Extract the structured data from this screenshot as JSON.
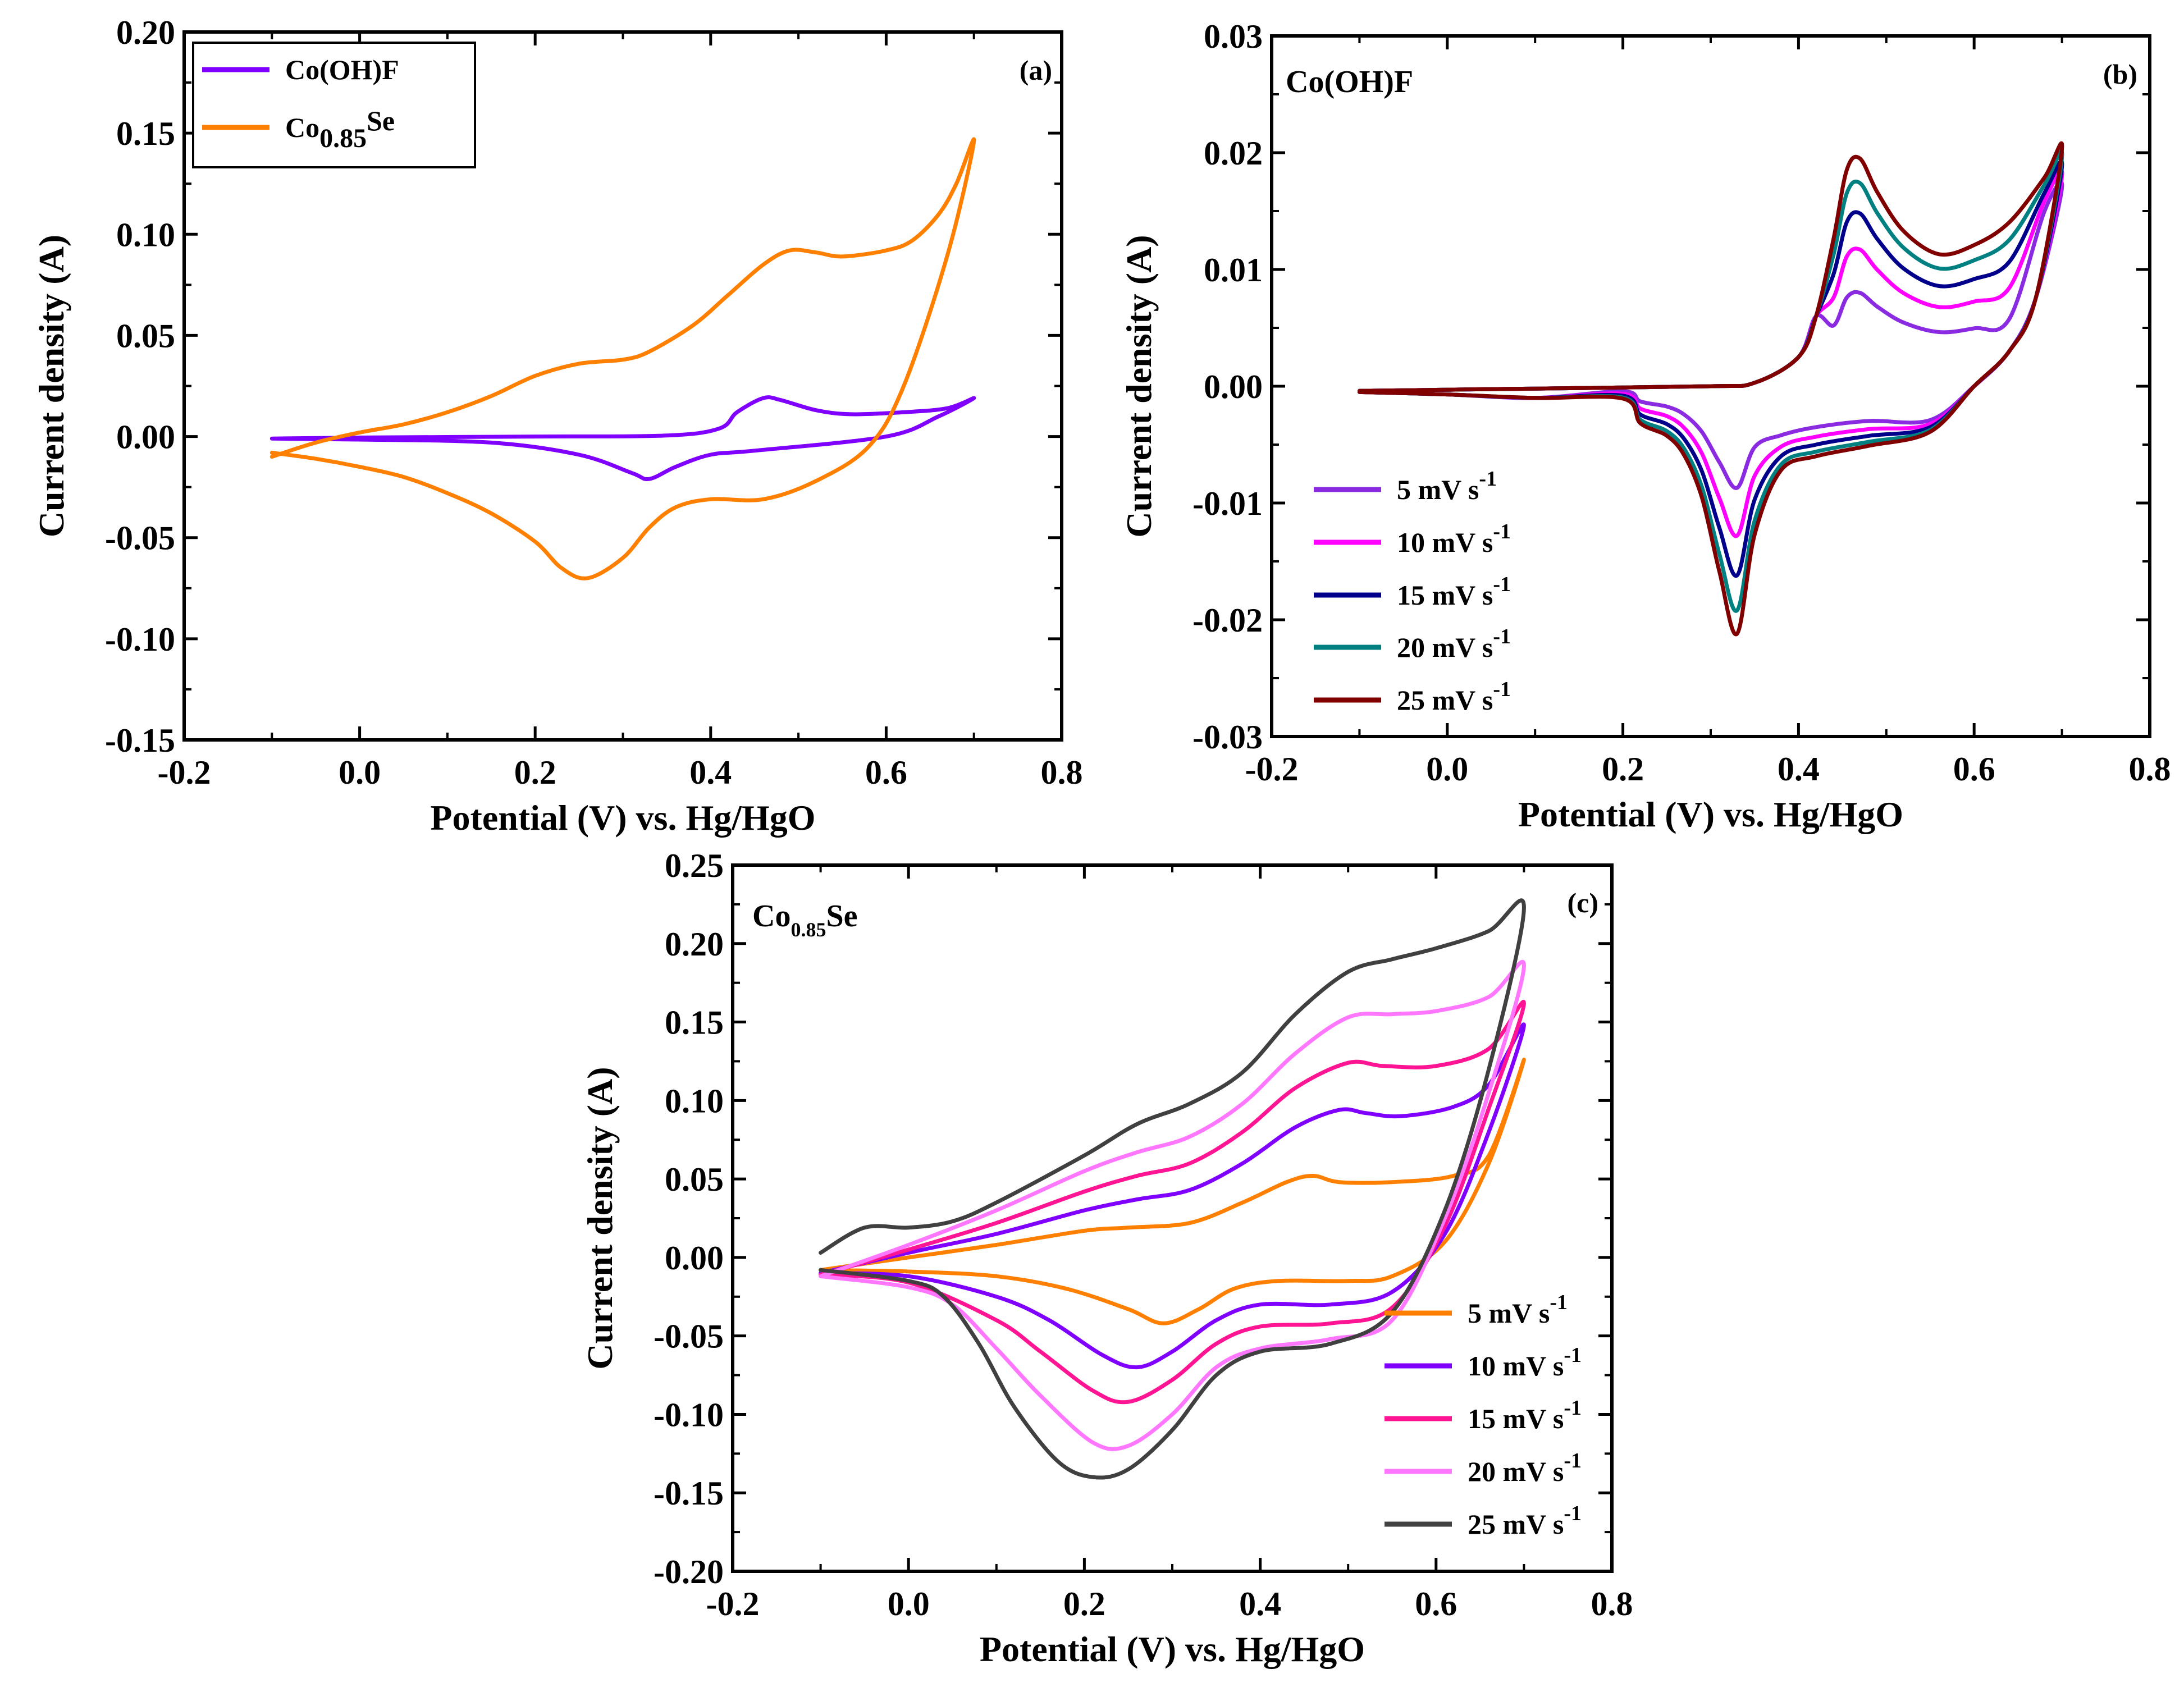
{
  "chart_data": [
    {
      "panel": "a",
      "panel_label": "(a)",
      "type": "line",
      "xlabel": "Potential (V) vs. Hg/HgO",
      "ylabel": "Current density (A)",
      "xlim": [
        -0.2,
        0.8
      ],
      "ylim": [
        -0.15,
        0.2
      ],
      "x_ticks": [
        -0.2,
        0.0,
        0.2,
        0.4,
        0.6,
        0.8
      ],
      "x_tick_labels": [
        "-0.2",
        "0.0",
        "0.2",
        "0.4",
        "0.6",
        "0.8"
      ],
      "y_ticks": [
        -0.15,
        -0.1,
        -0.05,
        0.0,
        0.05,
        0.1,
        0.15,
        0.2
      ],
      "y_tick_labels": [
        "-0.15",
        "-0.10",
        "-0.05",
        "0.00",
        "0.05",
        "0.10",
        "0.15",
        "0.20"
      ],
      "legend_position": "top-left",
      "series": [
        {
          "name": "Co(OH)F",
          "legend_main": "Co(OH)F",
          "legend_sub": "",
          "legend_after": "",
          "color": "#8000ff",
          "anodic": [
            [
              -0.1,
              -0.001
            ],
            [
              0.0,
              -0.0005
            ],
            [
              0.2,
              0.0
            ],
            [
              0.35,
              0.0005
            ],
            [
              0.41,
              0.004
            ],
            [
              0.43,
              0.012
            ],
            [
              0.46,
              0.019
            ],
            [
              0.48,
              0.018
            ],
            [
              0.52,
              0.013
            ],
            [
              0.56,
              0.011
            ],
            [
              0.62,
              0.012
            ],
            [
              0.67,
              0.014
            ],
            [
              0.7,
              0.019
            ]
          ],
          "cathodic": [
            [
              0.7,
              0.019
            ],
            [
              0.66,
              0.01
            ],
            [
              0.6,
              0.0
            ],
            [
              0.45,
              -0.007
            ],
            [
              0.4,
              -0.009
            ],
            [
              0.36,
              -0.015
            ],
            [
              0.33,
              -0.021
            ],
            [
              0.31,
              -0.018
            ],
            [
              0.25,
              -0.009
            ],
            [
              0.15,
              -0.003
            ],
            [
              0.0,
              -0.0015
            ],
            [
              -0.1,
              -0.001
            ]
          ]
        },
        {
          "name": "Co0.85Se",
          "legend_main": "Co",
          "legend_sub": "0.85",
          "legend_after": "Se",
          "color": "#ff8000",
          "anodic": [
            [
              -0.1,
              -0.01
            ],
            [
              -0.05,
              -0.003
            ],
            [
              0.0,
              0.002
            ],
            [
              0.05,
              0.006
            ],
            [
              0.1,
              0.012
            ],
            [
              0.15,
              0.02
            ],
            [
              0.2,
              0.03
            ],
            [
              0.25,
              0.036
            ],
            [
              0.3,
              0.038
            ],
            [
              0.33,
              0.042
            ],
            [
              0.38,
              0.055
            ],
            [
              0.42,
              0.07
            ],
            [
              0.46,
              0.085
            ],
            [
              0.49,
              0.092
            ],
            [
              0.52,
              0.091
            ],
            [
              0.55,
              0.089
            ],
            [
              0.6,
              0.092
            ],
            [
              0.63,
              0.097
            ],
            [
              0.66,
              0.11
            ],
            [
              0.68,
              0.125
            ],
            [
              0.7,
              0.146
            ]
          ],
          "cathodic": [
            [
              0.7,
              0.146
            ],
            [
              0.67,
              0.09
            ],
            [
              0.62,
              0.025
            ],
            [
              0.58,
              -0.005
            ],
            [
              0.52,
              -0.022
            ],
            [
              0.46,
              -0.031
            ],
            [
              0.4,
              -0.031
            ],
            [
              0.36,
              -0.035
            ],
            [
              0.33,
              -0.045
            ],
            [
              0.3,
              -0.06
            ],
            [
              0.26,
              -0.07
            ],
            [
              0.23,
              -0.065
            ],
            [
              0.2,
              -0.052
            ],
            [
              0.15,
              -0.038
            ],
            [
              0.1,
              -0.028
            ],
            [
              0.05,
              -0.02
            ],
            [
              0.0,
              -0.015
            ],
            [
              -0.05,
              -0.011
            ],
            [
              -0.1,
              -0.008
            ]
          ]
        }
      ]
    },
    {
      "panel": "b",
      "panel_label": "(b)",
      "sample_label_main": "Co(OH)F",
      "sample_label_sub": "",
      "sample_label_after": "",
      "type": "line",
      "xlabel": "Potential (V) vs. Hg/HgO",
      "ylabel": "Current density (A)",
      "xlim": [
        -0.2,
        0.8
      ],
      "ylim": [
        -0.03,
        0.03
      ],
      "x_ticks": [
        -0.2,
        0.0,
        0.2,
        0.4,
        0.6,
        0.8
      ],
      "x_tick_labels": [
        "-0.2",
        "0.0",
        "0.2",
        "0.4",
        "0.6",
        "0.8"
      ],
      "y_ticks": [
        -0.03,
        -0.02,
        -0.01,
        0.0,
        0.01,
        0.02,
        0.03
      ],
      "y_tick_labels": [
        "-0.03",
        "-0.02",
        "-0.01",
        "0.00",
        "0.01",
        "0.02",
        "0.03"
      ],
      "legend_position": "bottom-left",
      "series": [
        {
          "name": "5 mV s-1",
          "legend_main": "5 mV s",
          "legend_sup": "-1",
          "color": "#8a2be2",
          "peak_anodic": 0.008,
          "peak_cathodic": -0.0087,
          "end": 0.017
        },
        {
          "name": "10 mV s-1",
          "legend_main": "10 mV s",
          "legend_sup": "-1",
          "color": "#ff00ff",
          "peak_anodic": 0.0117,
          "peak_cathodic": -0.0128,
          "end": 0.018
        },
        {
          "name": "15 mV s-1",
          "legend_main": "15 mV s",
          "legend_sup": "-1",
          "color": "#00008b",
          "peak_anodic": 0.0148,
          "peak_cathodic": -0.0162,
          "end": 0.0188
        },
        {
          "name": "20 mV s-1",
          "legend_main": "20 mV s",
          "legend_sup": "-1",
          "color": "#008080",
          "peak_anodic": 0.0174,
          "peak_cathodic": -0.0192,
          "end": 0.0196
        },
        {
          "name": "25 mV s-1",
          "legend_main": "25 mV s",
          "legend_sup": "-1",
          "color": "#800000",
          "peak_anodic": 0.0195,
          "peak_cathodic": -0.0212,
          "end": 0.0203
        }
      ]
    },
    {
      "panel": "c",
      "panel_label": "(c)",
      "sample_label_main": "Co",
      "sample_label_sub": "0.85",
      "sample_label_after": "Se",
      "type": "line",
      "xlabel": "Potential (V) vs. Hg/HgO",
      "ylabel": "Current density (A)",
      "xlim": [
        -0.2,
        0.8
      ],
      "ylim": [
        -0.2,
        0.25
      ],
      "x_ticks": [
        -0.2,
        0.0,
        0.2,
        0.4,
        0.6,
        0.8
      ],
      "x_tick_labels": [
        "-0.2",
        "0.0",
        "0.2",
        "0.4",
        "0.6",
        "0.8"
      ],
      "y_ticks": [
        -0.2,
        -0.15,
        -0.1,
        -0.05,
        0.0,
        0.05,
        0.1,
        0.15,
        0.2,
        0.25
      ],
      "y_tick_labels": [
        "-0.20",
        "-0.15",
        "-0.10",
        "-0.05",
        "0.00",
        "0.05",
        "0.10",
        "0.15",
        "0.20",
        "0.25"
      ],
      "legend_position": "bottom-right",
      "series": [
        {
          "name": "5 mV s-1",
          "legend_main": "5 mV s",
          "legend_sup": "-1",
          "color": "#ff8000",
          "anodic": [
            [
              -0.1,
              -0.008
            ],
            [
              0.0,
              0.0
            ],
            [
              0.1,
              0.008
            ],
            [
              0.2,
              0.017
            ],
            [
              0.25,
              0.019
            ],
            [
              0.32,
              0.022
            ],
            [
              0.38,
              0.035
            ],
            [
              0.43,
              0.048
            ],
            [
              0.46,
              0.052
            ],
            [
              0.49,
              0.048
            ],
            [
              0.55,
              0.048
            ],
            [
              0.62,
              0.052
            ],
            [
              0.66,
              0.065
            ],
            [
              0.7,
              0.126
            ]
          ],
          "cathodic": [
            [
              0.7,
              0.126
            ],
            [
              0.66,
              0.06
            ],
            [
              0.61,
              0.01
            ],
            [
              0.55,
              -0.012
            ],
            [
              0.5,
              -0.015
            ],
            [
              0.42,
              -0.015
            ],
            [
              0.37,
              -0.02
            ],
            [
              0.33,
              -0.033
            ],
            [
              0.29,
              -0.042
            ],
            [
              0.25,
              -0.033
            ],
            [
              0.18,
              -0.02
            ],
            [
              0.1,
              -0.012
            ],
            [
              0.0,
              -0.009
            ],
            [
              -0.1,
              -0.008
            ]
          ]
        },
        {
          "name": "10 mV s-1",
          "legend_main": "10 mV s",
          "legend_sup": "-1",
          "color": "#8000ff",
          "anodic": [
            [
              -0.1,
              -0.01
            ],
            [
              0.0,
              0.003
            ],
            [
              0.1,
              0.015
            ],
            [
              0.2,
              0.03
            ],
            [
              0.26,
              0.037
            ],
            [
              0.32,
              0.043
            ],
            [
              0.38,
              0.06
            ],
            [
              0.44,
              0.083
            ],
            [
              0.49,
              0.094
            ],
            [
              0.52,
              0.092
            ],
            [
              0.56,
              0.09
            ],
            [
              0.62,
              0.096
            ],
            [
              0.66,
              0.11
            ],
            [
              0.7,
              0.148
            ]
          ],
          "cathodic": [
            [
              0.7,
              0.148
            ],
            [
              0.66,
              0.08
            ],
            [
              0.61,
              0.015
            ],
            [
              0.55,
              -0.022
            ],
            [
              0.48,
              -0.03
            ],
            [
              0.4,
              -0.03
            ],
            [
              0.35,
              -0.04
            ],
            [
              0.3,
              -0.06
            ],
            [
              0.26,
              -0.07
            ],
            [
              0.22,
              -0.062
            ],
            [
              0.16,
              -0.04
            ],
            [
              0.1,
              -0.025
            ],
            [
              0.0,
              -0.012
            ],
            [
              -0.1,
              -0.01
            ]
          ]
        },
        {
          "name": "15 mV s-1",
          "legend_main": "15 mV s",
          "legend_sup": "-1",
          "color": "#ff1493",
          "anodic": [
            [
              -0.1,
              -0.011
            ],
            [
              0.0,
              0.005
            ],
            [
              0.1,
              0.022
            ],
            [
              0.2,
              0.042
            ],
            [
              0.26,
              0.052
            ],
            [
              0.32,
              0.06
            ],
            [
              0.38,
              0.08
            ],
            [
              0.44,
              0.108
            ],
            [
              0.5,
              0.124
            ],
            [
              0.54,
              0.122
            ],
            [
              0.6,
              0.122
            ],
            [
              0.66,
              0.133
            ],
            [
              0.7,
              0.162
            ]
          ],
          "cathodic": [
            [
              0.7,
              0.162
            ],
            [
              0.66,
              0.095
            ],
            [
              0.61,
              0.02
            ],
            [
              0.55,
              -0.032
            ],
            [
              0.48,
              -0.042
            ],
            [
              0.4,
              -0.044
            ],
            [
              0.35,
              -0.055
            ],
            [
              0.3,
              -0.078
            ],
            [
              0.25,
              -0.092
            ],
            [
              0.21,
              -0.085
            ],
            [
              0.15,
              -0.06
            ],
            [
              0.1,
              -0.04
            ],
            [
              0.0,
              -0.016
            ],
            [
              -0.1,
              -0.011
            ]
          ]
        },
        {
          "name": "20 mV s-1",
          "legend_main": "20 mV s",
          "legend_sup": "-1",
          "color": "#ff77ff",
          "anodic": [
            [
              -0.1,
              -0.012
            ],
            [
              0.0,
              0.008
            ],
            [
              0.1,
              0.03
            ],
            [
              0.2,
              0.055
            ],
            [
              0.26,
              0.067
            ],
            [
              0.32,
              0.077
            ],
            [
              0.38,
              0.098
            ],
            [
              0.44,
              0.13
            ],
            [
              0.5,
              0.153
            ],
            [
              0.55,
              0.155
            ],
            [
              0.6,
              0.157
            ],
            [
              0.66,
              0.166
            ],
            [
              0.7,
              0.186
            ]
          ],
          "cathodic": [
            [
              0.7,
              0.186
            ],
            [
              0.66,
              0.105
            ],
            [
              0.61,
              0.025
            ],
            [
              0.55,
              -0.04
            ],
            [
              0.48,
              -0.052
            ],
            [
              0.4,
              -0.058
            ],
            [
              0.35,
              -0.07
            ],
            [
              0.3,
              -0.1
            ],
            [
              0.25,
              -0.12
            ],
            [
              0.21,
              -0.118
            ],
            [
              0.15,
              -0.088
            ],
            [
              0.1,
              -0.058
            ],
            [
              0.05,
              -0.03
            ],
            [
              0.0,
              -0.019
            ],
            [
              -0.1,
              -0.012
            ]
          ]
        },
        {
          "name": "25 mV s-1",
          "legend_main": "25 mV s",
          "legend_sup": "-1",
          "color": "#404040",
          "anodic": [
            [
              -0.1,
              0.003
            ],
            [
              -0.05,
              0.019
            ],
            [
              0.0,
              0.019
            ],
            [
              0.05,
              0.023
            ],
            [
              0.1,
              0.035
            ],
            [
              0.2,
              0.065
            ],
            [
              0.26,
              0.085
            ],
            [
              0.32,
              0.098
            ],
            [
              0.38,
              0.118
            ],
            [
              0.44,
              0.155
            ],
            [
              0.5,
              0.182
            ],
            [
              0.55,
              0.19
            ],
            [
              0.6,
              0.197
            ],
            [
              0.66,
              0.208
            ],
            [
              0.7,
              0.223
            ]
          ],
          "cathodic": [
            [
              0.7,
              0.223
            ],
            [
              0.66,
              0.12
            ],
            [
              0.61,
              0.03
            ],
            [
              0.55,
              -0.035
            ],
            [
              0.48,
              -0.055
            ],
            [
              0.4,
              -0.06
            ],
            [
              0.35,
              -0.075
            ],
            [
              0.3,
              -0.11
            ],
            [
              0.25,
              -0.135
            ],
            [
              0.21,
              -0.14
            ],
            [
              0.17,
              -0.13
            ],
            [
              0.12,
              -0.095
            ],
            [
              0.08,
              -0.055
            ],
            [
              0.04,
              -0.025
            ],
            [
              0.0,
              -0.015
            ],
            [
              -0.1,
              -0.008
            ]
          ]
        }
      ]
    }
  ]
}
